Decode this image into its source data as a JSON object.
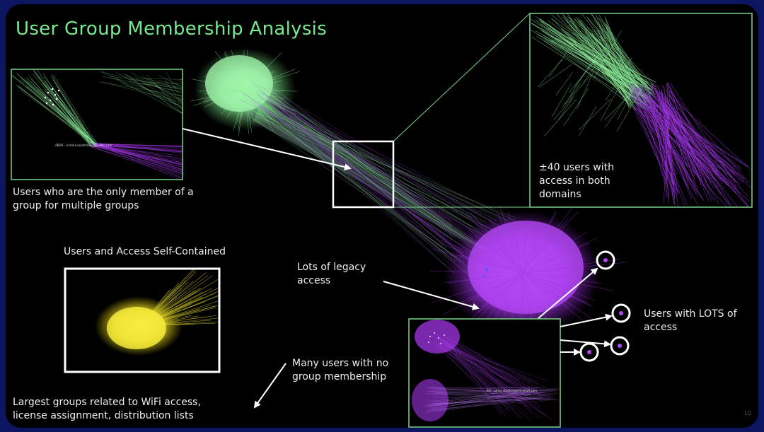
{
  "slide": {
    "title": "User Group Membership Analysis",
    "page_number": "10"
  },
  "annotations": {
    "only_member": "Users who are the only member of a group for multiple groups",
    "both_domains": "±40 users with access in both domains",
    "self_contained": "Users and Access Self-Contained",
    "legacy": "Lots of legacy access",
    "lots_of_access": "Users with LOTS of access",
    "no_membership": "Many users with no group membership",
    "largest_groups": "Largest groups related to WiFi access, license assignment, distribution lists"
  },
  "inset_labels": {
    "top_left_node": "ABDA - cristina.dumitrescu@quilter.com",
    "bottom_node": "BU - carlos.stanton@zmnstraft.com"
  },
  "colors": {
    "green_cluster": "#8ef09c",
    "purple_cluster": "#a236e6",
    "yellow_cluster": "#f2e530",
    "title": "#78e88e",
    "background": "#000000",
    "frame": "#0b1560",
    "callout": "#ffffff"
  }
}
